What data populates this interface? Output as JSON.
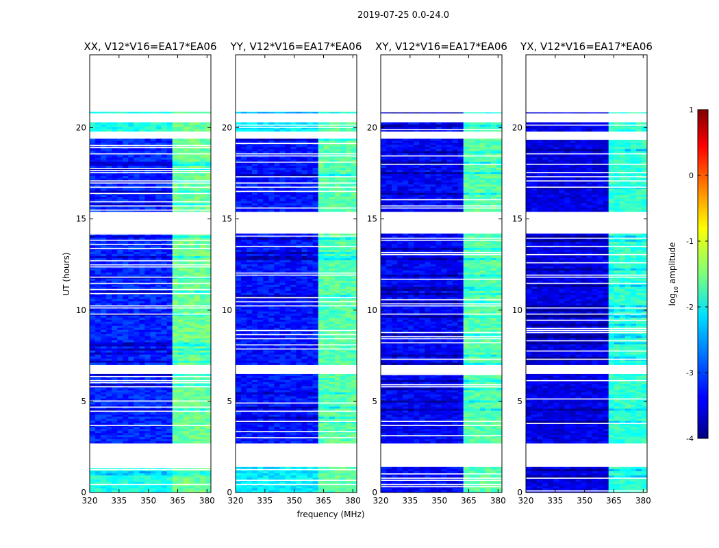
{
  "figure": {
    "title": "2019-07-25 0.0-24.0"
  },
  "chart_data": {
    "type": "heatmap",
    "title": "2019-07-25 0.0-24.0",
    "xlabel": "frequency (MHz)",
    "ylabel": "UT (hours)",
    "xlim": [
      320,
      382
    ],
    "ylim": [
      0,
      24
    ],
    "x_ticks": [
      320,
      335,
      350,
      365,
      380
    ],
    "y_ticks": [
      0,
      5,
      10,
      15,
      20
    ],
    "panels": [
      {
        "title": "XX, V12*V16=EA17*EA06",
        "base_level": -3.2,
        "bright_level": -2.0,
        "rfi_level": -1.6,
        "upper_band_level": -2.0
      },
      {
        "title": "YY, V12*V16=EA17*EA06",
        "base_level": -3.3,
        "bright_level": -2.2,
        "rfi_level": -1.7,
        "upper_band_level": -2.1
      },
      {
        "title": "XY, V12*V16=EA17*EA06",
        "base_level": -3.4,
        "bright_level": -3.4,
        "rfi_level": -1.7,
        "upper_band_level": -3.3
      },
      {
        "title": "YX, V12*V16=EA17*EA06",
        "base_level": -3.5,
        "bright_level": -3.5,
        "rfi_level": -1.9,
        "upper_band_level": -3.4
      }
    ],
    "data_segments_hours": [
      [
        0.0,
        1.4
      ],
      [
        2.7,
        6.5
      ],
      [
        7.0,
        14.2
      ],
      [
        15.4,
        19.4
      ],
      [
        19.8,
        20.3
      ],
      [
        20.8,
        20.8
      ]
    ],
    "rfi_band_mhz": [
      363,
      382
    ],
    "colorbar": {
      "label": "log10 amplitude",
      "label_main": "log",
      "label_sub": "10",
      "label_suffix": " amplitude",
      "range": [
        -4,
        1
      ],
      "ticks": [
        -4,
        -3,
        -2,
        -1,
        0,
        1
      ],
      "colormap": "jet"
    }
  }
}
